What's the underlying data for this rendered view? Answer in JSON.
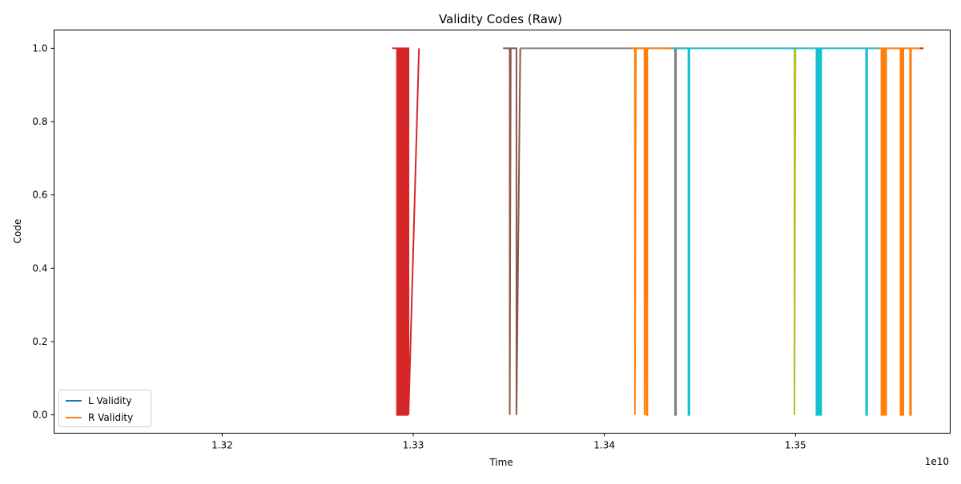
{
  "chart_data": {
    "type": "line",
    "title": "Validity Codes (Raw)",
    "xlabel": "Time",
    "ylabel": "Code",
    "x_offset_label": "1e10",
    "x_ticks": [
      "1.32",
      "1.33",
      "1.34",
      "1.35"
    ],
    "x_tick_values": [
      1.32,
      1.33,
      1.34,
      1.35
    ],
    "y_ticks": [
      "0.0",
      "0.2",
      "0.4",
      "0.6",
      "0.8",
      "1.0"
    ],
    "y_tick_values": [
      0.0,
      0.2,
      0.4,
      0.6,
      0.8,
      1.0
    ],
    "xlim": [
      1.3112,
      1.3581
    ],
    "ylim": [
      -0.05,
      1.05
    ],
    "grid": false,
    "legend_position": "lower-left",
    "legend": [
      {
        "name": "L Validity",
        "color": "#1f77b4"
      },
      {
        "name": "R Validity",
        "color": "#ff7f0e"
      }
    ],
    "series": [
      {
        "name": "L Validity",
        "color": "#1f77b4",
        "x": [],
        "values": []
      },
      {
        "name": "R Validity",
        "color": "#ff7f0e",
        "x": [],
        "values": []
      },
      {
        "color": "#d62728",
        "x": [
          1.3289,
          1.32915,
          1.32915,
          1.3292,
          1.3292,
          1.32925,
          1.32925,
          1.3293,
          1.3293,
          1.32935,
          1.32935,
          1.3294,
          1.3294,
          1.32945,
          1.32945,
          1.3295,
          1.3295,
          1.32955,
          1.32955,
          1.3296,
          1.3296,
          1.32965,
          1.32965,
          1.3297,
          1.3297,
          1.32975,
          1.32975,
          1.3303
        ],
        "values": [
          1,
          1,
          0,
          0,
          1,
          1,
          0,
          0,
          1,
          1,
          0,
          0,
          1,
          1,
          0,
          0,
          1,
          1,
          0,
          0,
          1,
          1,
          0,
          0,
          1,
          1,
          0,
          1
        ]
      },
      {
        "color": "#8c564b",
        "x": [
          1.3347,
          1.33505,
          1.33505,
          1.3351,
          1.3351,
          1.3354,
          1.3354,
          1.3356
        ],
        "values": [
          1,
          1,
          0,
          1,
          1,
          1,
          0,
          1
        ]
      },
      {
        "color": "#7f7f7f",
        "x": [
          1.3356,
          1.3416,
          1.3437,
          1.3437,
          1.34375,
          1.34375,
          1.3445
        ],
        "values": [
          1,
          1,
          1,
          0,
          0,
          1,
          1
        ]
      },
      {
        "color": "#ff7f0e",
        "x": [
          1.3414,
          1.3416,
          1.3416,
          1.34165,
          1.34165,
          1.3421,
          1.3421,
          1.34215,
          1.34215,
          1.3422,
          1.3422,
          1.34225,
          1.34225,
          1.3435
        ],
        "values": [
          1,
          1,
          0,
          1,
          1,
          1,
          0,
          1,
          1,
          1,
          0,
          0,
          1,
          1
        ]
      },
      {
        "color": "#bcbd22",
        "x": [
          1.3497,
          1.34995,
          1.34995,
          1.35
        ],
        "values": [
          1,
          1,
          0,
          1
        ]
      },
      {
        "color": "#17becf",
        "x": [
          1.3435,
          1.3444,
          1.3444,
          1.34445,
          1.34445,
          1.3511,
          1.3511,
          1.35115,
          1.35115,
          1.3512,
          1.3512,
          1.35125,
          1.35125,
          1.3513,
          1.3513,
          1.35135,
          1.35135,
          1.3537,
          1.3537,
          1.35375,
          1.35375,
          1.3544
        ],
        "values": [
          1,
          1,
          0,
          0,
          1,
          1,
          0,
          0,
          1,
          1,
          0,
          0,
          1,
          1,
          0,
          0,
          1,
          1,
          0,
          0,
          1,
          1
        ]
      },
      {
        "color": "#ff7f0e",
        "x": [
          1.3543,
          1.3545,
          1.3545,
          1.35455,
          1.35455,
          1.3546,
          1.3546,
          1.35465,
          1.35465,
          1.3547,
          1.3547,
          1.35475,
          1.35475,
          1.3555,
          1.3555,
          1.35555,
          1.35555,
          1.3556,
          1.3556,
          1.35565,
          1.35565,
          1.356,
          1.356,
          1.35605,
          1.35605,
          1.3567
        ],
        "values": [
          1,
          1,
          0,
          0,
          1,
          1,
          0,
          0,
          1,
          1,
          0,
          0,
          1,
          1,
          0,
          0,
          1,
          1,
          0,
          0,
          1,
          1,
          0,
          0,
          1,
          1
        ]
      },
      {
        "color": "#d62728",
        "x": [
          1.3565,
          1.3567
        ],
        "values": [
          1,
          1
        ]
      }
    ]
  }
}
